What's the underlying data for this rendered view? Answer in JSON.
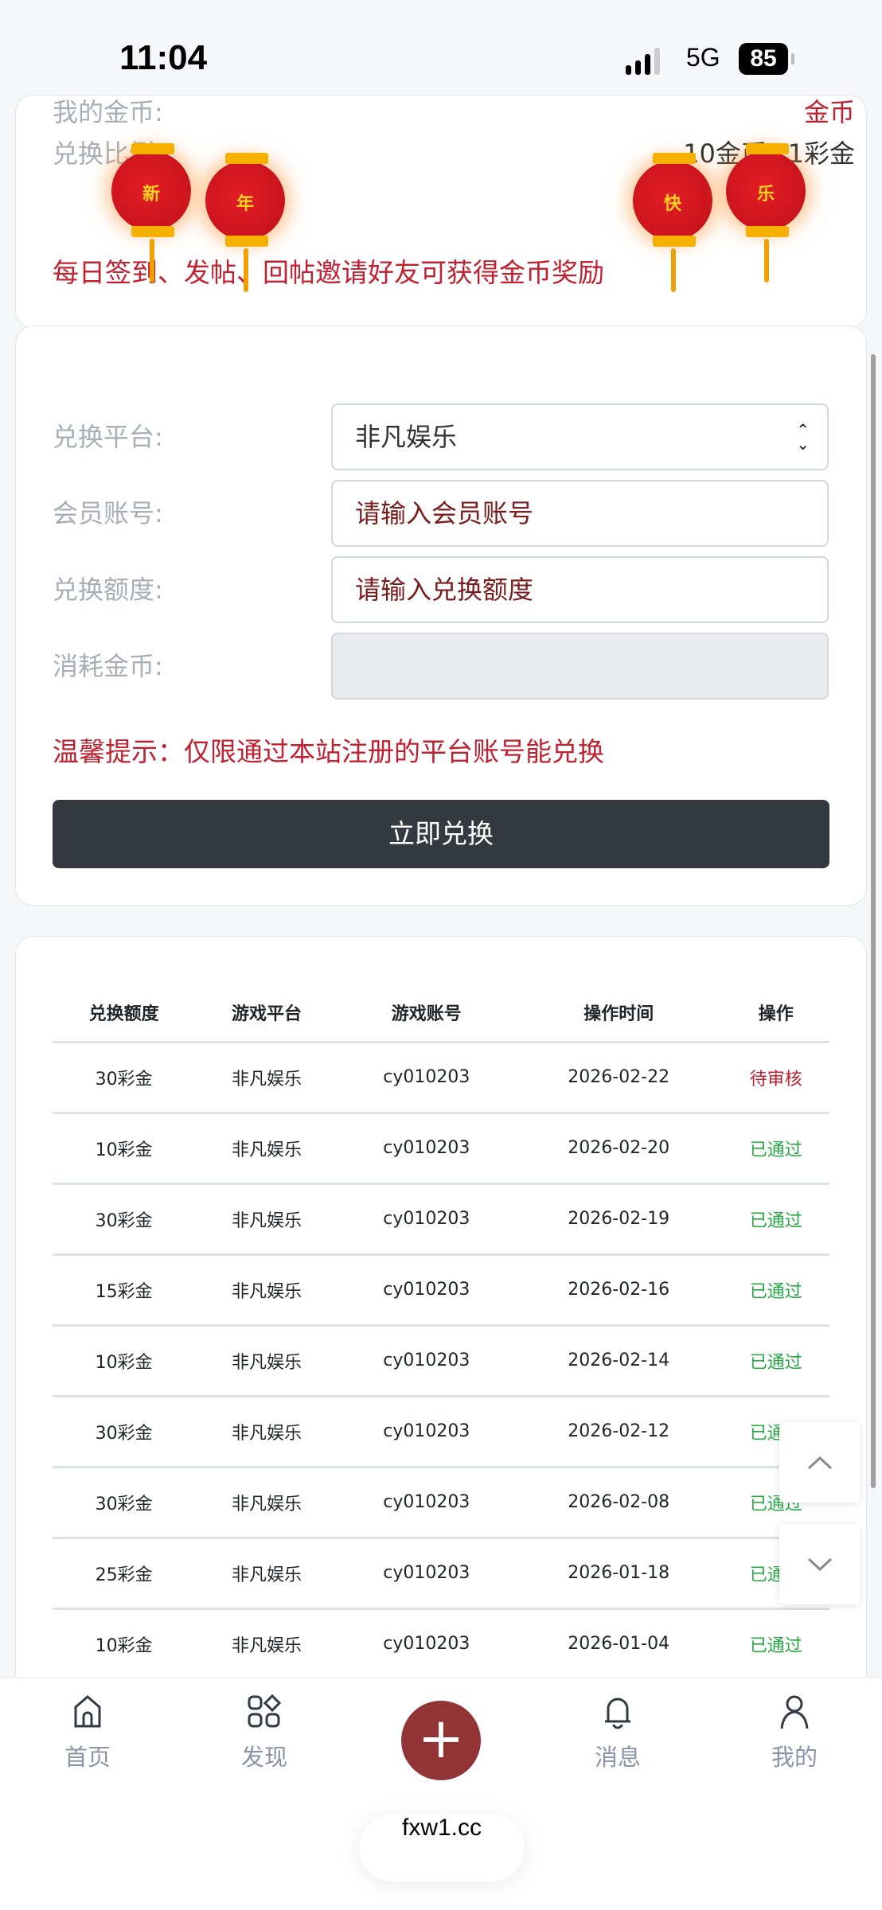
{
  "status_bar": {
    "time": "11:04",
    "network": "5G",
    "battery": "85"
  },
  "info_card": {
    "coins_label": "我的金币:",
    "coins_value": "金币",
    "ratio_label": "兑换比例:",
    "ratio_value": "10金币=1彩金",
    "reward_text": "每日签到、发帖、回帖邀请好友可获得金币奖励",
    "lanterns": [
      "新",
      "年",
      "快",
      "乐"
    ]
  },
  "form": {
    "platform_label": "兑换平台:",
    "platform_value": "非凡娱乐",
    "account_label": "会员账号:",
    "account_placeholder": "请输入会员账号",
    "amount_label": "兑换额度:",
    "amount_placeholder": "请输入兑换额度",
    "cost_label": "消耗金币:",
    "cost_value": "",
    "hint": "温馨提示：仅限通过本站注册的平台账号能兑换",
    "submit": "立即兑换"
  },
  "table": {
    "headers": [
      "兑换额度",
      "游戏平台",
      "游戏账号",
      "操作时间",
      "操作"
    ],
    "rows": [
      {
        "amount": "30彩金",
        "platform": "非凡娱乐",
        "account": "cy010203",
        "time": "2026-02-22",
        "status": "待审核"
      },
      {
        "amount": "10彩金",
        "platform": "非凡娱乐",
        "account": "cy010203",
        "time": "2026-02-20",
        "status": "已通过"
      },
      {
        "amount": "30彩金",
        "platform": "非凡娱乐",
        "account": "cy010203",
        "time": "2026-02-19",
        "status": "已通过"
      },
      {
        "amount": "15彩金",
        "platform": "非凡娱乐",
        "account": "cy010203",
        "time": "2026-02-16",
        "status": "已通过"
      },
      {
        "amount": "10彩金",
        "platform": "非凡娱乐",
        "account": "cy010203",
        "time": "2026-02-14",
        "status": "已通过"
      },
      {
        "amount": "30彩金",
        "platform": "非凡娱乐",
        "account": "cy010203",
        "time": "2026-02-12",
        "status": "已通过"
      },
      {
        "amount": "30彩金",
        "platform": "非凡娱乐",
        "account": "cy010203",
        "time": "2026-02-08",
        "status": "已通过"
      },
      {
        "amount": "25彩金",
        "platform": "非凡娱乐",
        "account": "cy010203",
        "time": "2026-01-18",
        "status": "已通过"
      },
      {
        "amount": "10彩金",
        "platform": "非凡娱乐",
        "account": "cy010203",
        "time": "2026-01-04",
        "status": "已通过"
      }
    ]
  },
  "colors": {
    "pending": "#c0202f",
    "approved": "#28a745",
    "accent": "#923335",
    "button": "#343a40"
  },
  "bottom_nav": {
    "items": [
      {
        "label": "首页",
        "icon": "home-icon"
      },
      {
        "label": "发现",
        "icon": "grid-icon"
      },
      {
        "label": "消息",
        "icon": "bell-icon"
      },
      {
        "label": "我的",
        "icon": "user-icon"
      }
    ],
    "plus_icon": "plus-icon"
  },
  "browser": {
    "url": "fxw1.cc"
  }
}
